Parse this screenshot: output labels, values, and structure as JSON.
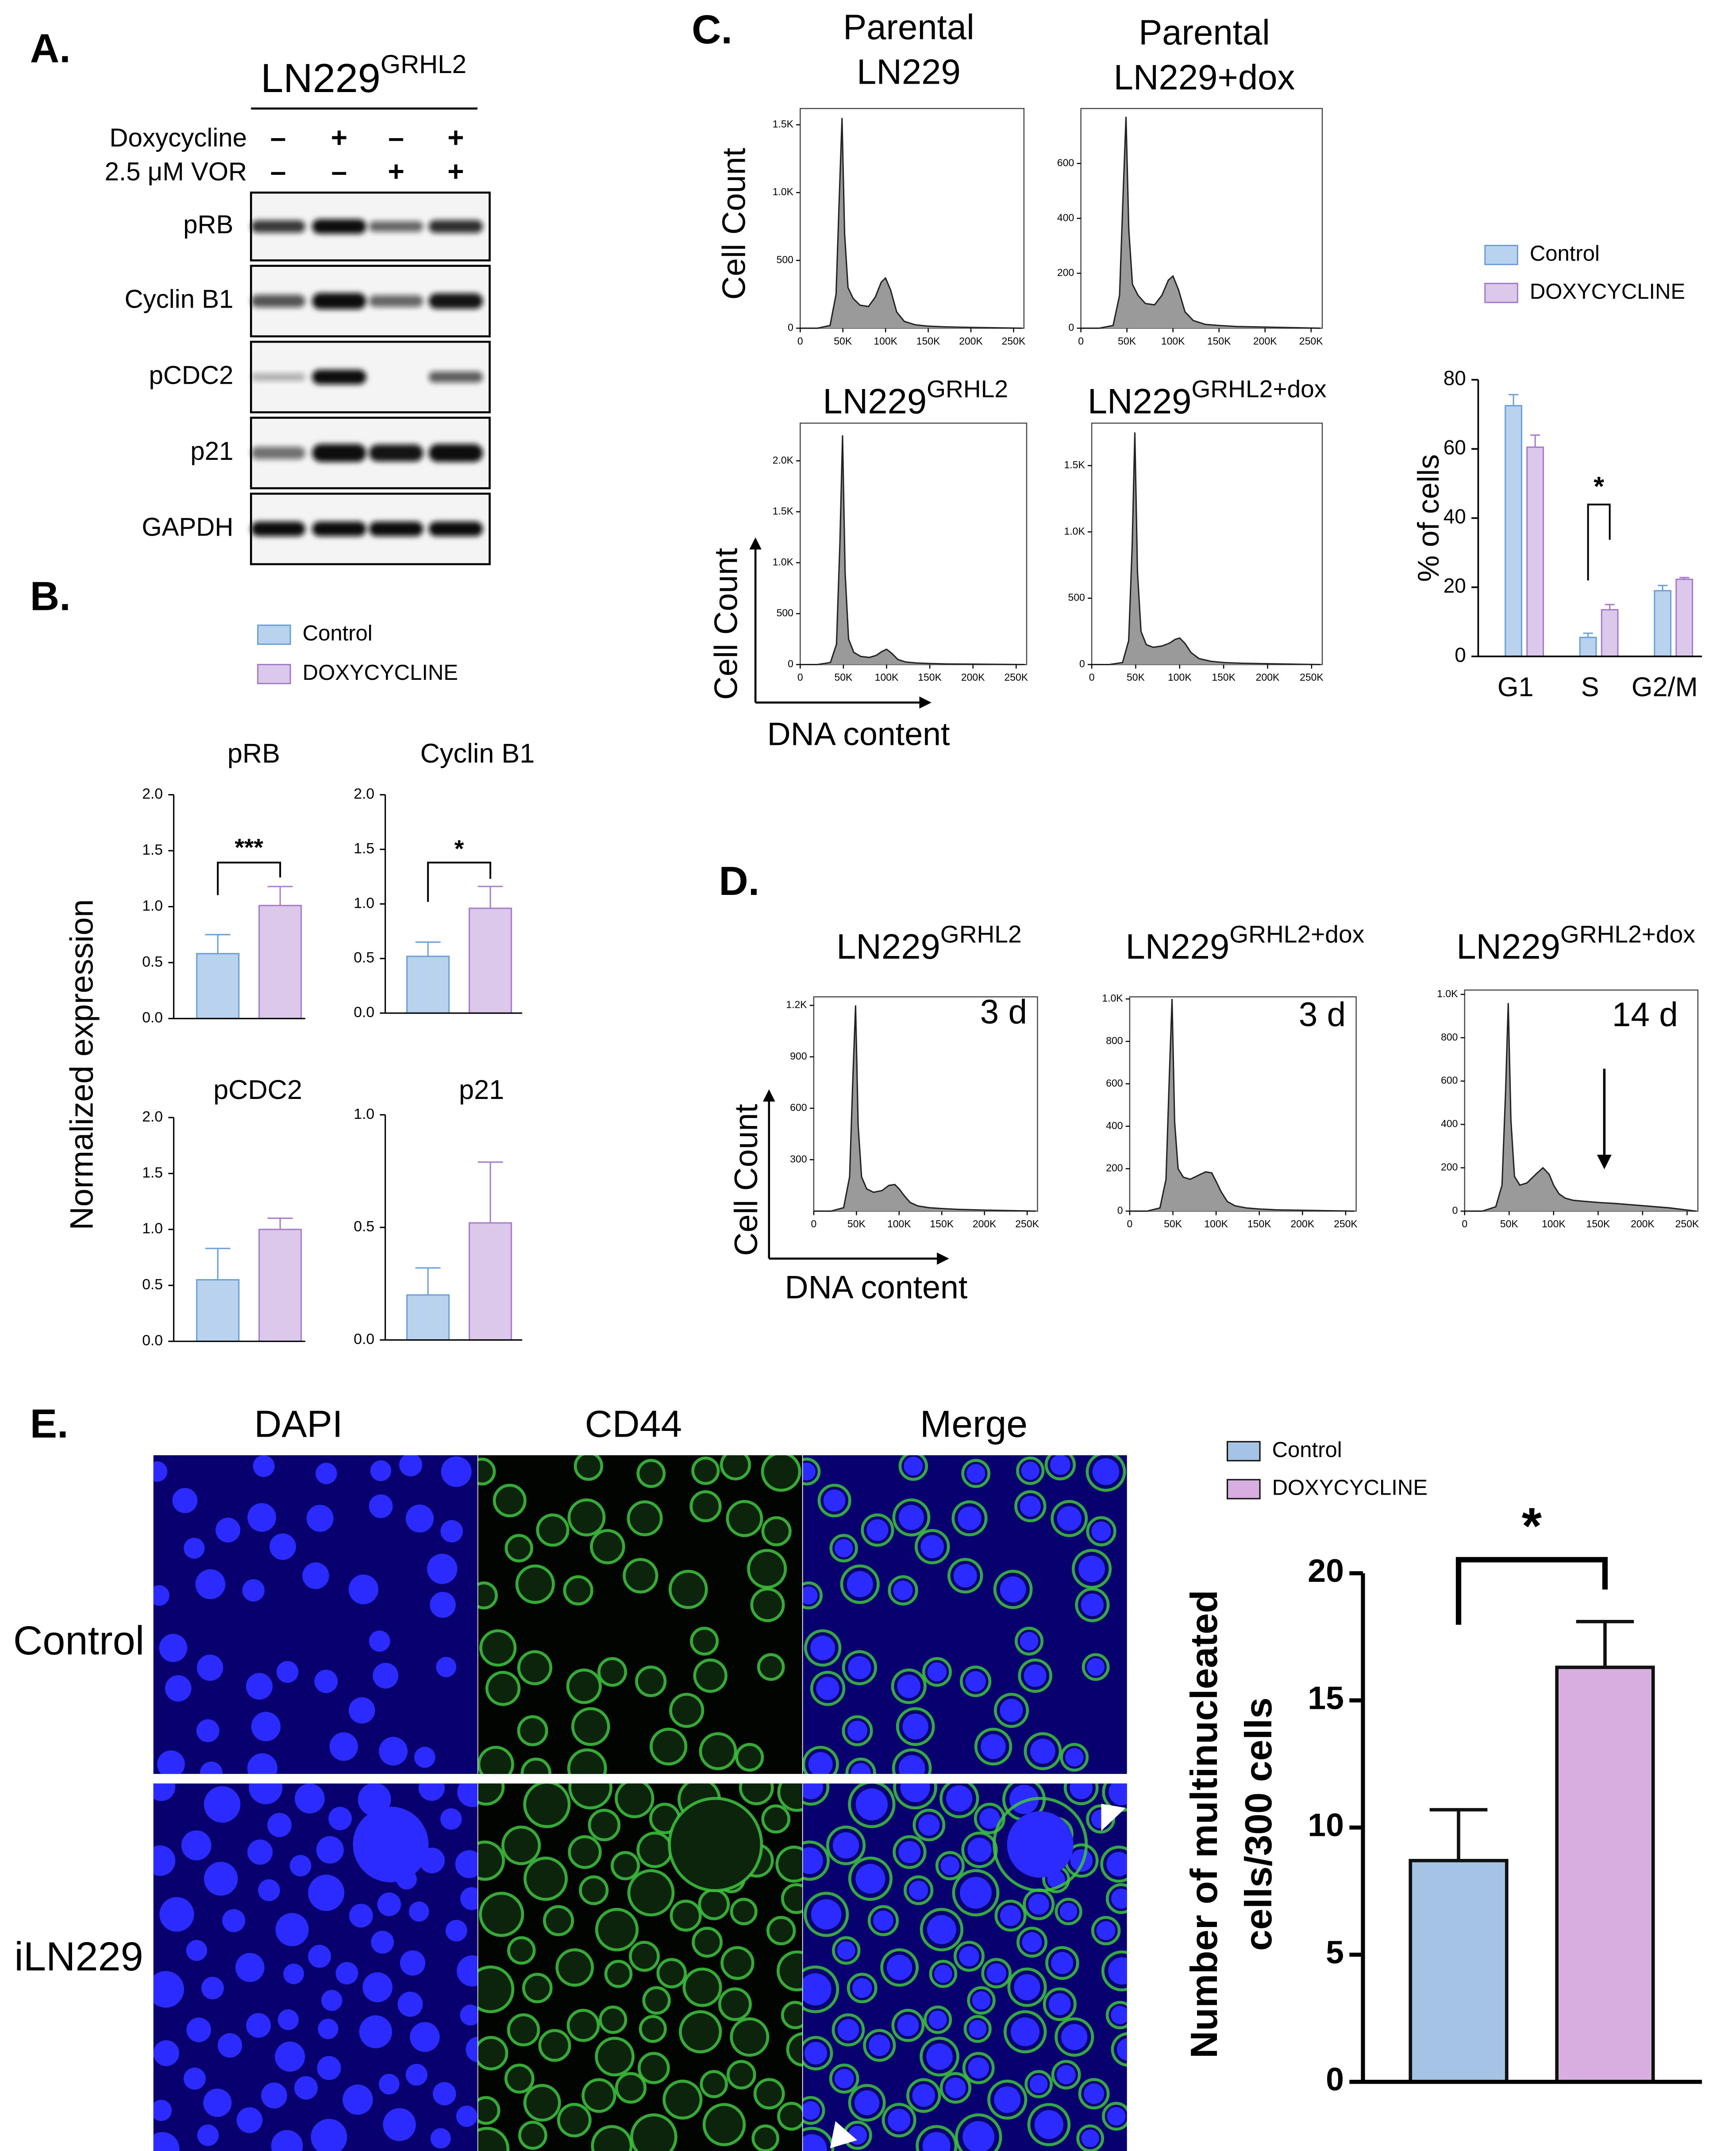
{
  "panel_labels": [
    "A.",
    "B.",
    "C.",
    "D.",
    "E."
  ],
  "blot": {
    "title": "LN229",
    "title_sup": "GRHL2",
    "treatments": [
      {
        "label": "Doxycycline",
        "signs": [
          "–",
          "+",
          "–",
          "+"
        ]
      },
      {
        "label": "2.5 μM VOR",
        "signs": [
          "–",
          "–",
          "+",
          "+"
        ]
      }
    ],
    "proteins": [
      "pRB",
      "Cyclin B1",
      "pCDC2",
      "p21",
      "GAPDH"
    ]
  },
  "microscopy": {
    "columns": [
      "DAPI",
      "CD44",
      "Merge"
    ],
    "rows": [
      "Control",
      "iLN229"
    ]
  },
  "chart_data": [
    {
      "type": "bar",
      "title": "pRB",
      "ylabel": "Normalized expression",
      "categories": [
        null
      ],
      "series": [
        {
          "name": "Control",
          "color": "#b9d2ee",
          "edgecolor": "#6d9fd6",
          "values": [
            0.58
          ],
          "errors": [
            0.17
          ]
        },
        {
          "name": "DOXYCYCLINE",
          "color": "#dcc8ea",
          "edgecolor": "#a47cc8",
          "values": [
            1.01
          ],
          "errors": [
            0.17
          ]
        }
      ],
      "ylim": [
        0,
        2
      ],
      "yticks": [
        {
          "value": 0,
          "label": "0.0"
        },
        0.5,
        {
          "value": 1,
          "label": "1.0"
        },
        1.5,
        {
          "value": 2,
          "label": "2.0"
        }
      ],
      "annotation": "***"
    },
    {
      "type": "bar",
      "title": "Cyclin B1",
      "categories": [
        null
      ],
      "series": [
        {
          "color": "#b9d2ee",
          "edgecolor": "#6d9fd6",
          "values": [
            0.52
          ],
          "errors": [
            0.13
          ]
        },
        {
          "color": "#dcc8ea",
          "edgecolor": "#a47cc8",
          "values": [
            0.96
          ],
          "errors": [
            0.2
          ]
        }
      ],
      "ylim": [
        0,
        2
      ],
      "yticks": [
        {
          "value": 0,
          "label": "0.0"
        },
        0.5,
        {
          "value": 1,
          "label": "1.0"
        },
        1.5,
        {
          "value": 2,
          "label": "2.0"
        }
      ],
      "annotation": "*"
    },
    {
      "type": "bar",
      "title": "pCDC2",
      "categories": [
        null
      ],
      "series": [
        {
          "color": "#b9d2ee",
          "edgecolor": "#6d9fd6",
          "values": [
            0.55
          ],
          "errors": [
            0.28
          ]
        },
        {
          "color": "#dcc8ea",
          "edgecolor": "#a47cc8",
          "values": [
            1.0
          ],
          "errors": [
            0.1
          ]
        }
      ],
      "ylim": [
        0,
        2
      ],
      "yticks": [
        {
          "value": 0,
          "label": "0.0"
        },
        0.5,
        {
          "value": 1,
          "label": "1.0"
        },
        1.5,
        {
          "value": 2,
          "label": "2.0"
        }
      ]
    },
    {
      "type": "bar",
      "title": "p21",
      "categories": [
        null
      ],
      "series": [
        {
          "color": "#b9d2ee",
          "edgecolor": "#6d9fd6",
          "values": [
            0.2
          ],
          "errors": [
            0.12
          ]
        },
        {
          "color": "#dcc8ea",
          "edgecolor": "#a47cc8",
          "values": [
            0.52
          ],
          "errors": [
            0.27
          ]
        }
      ],
      "ylim": [
        0,
        1
      ],
      "yticks": [
        {
          "value": 0,
          "label": "0.0"
        },
        0.5,
        {
          "value": 1,
          "label": "1.0"
        }
      ]
    },
    {
      "type": "area",
      "title": [
        "Parental",
        "LN229"
      ],
      "ylabel": "Cell Count",
      "color": "#9a9a9a",
      "x": [
        0,
        20000,
        35000,
        42000,
        46000,
        49000,
        52000,
        56000,
        62000,
        70000,
        80000,
        88000,
        95000,
        100000,
        106000,
        113000,
        122000,
        135000,
        150000,
        170000,
        200000,
        230000,
        260000
      ],
      "values": [
        0,
        0,
        20,
        250,
        1000,
        1550,
        700,
        300,
        220,
        170,
        160,
        230,
        340,
        370,
        280,
        120,
        50,
        25,
        15,
        10,
        6,
        3,
        0
      ],
      "xlim": [
        0,
        262144
      ],
      "xticks": [
        0,
        {
          "value": 50000,
          "label": "50K"
        },
        {
          "value": 100000,
          "label": "100K"
        },
        {
          "value": 150000,
          "label": "150K"
        },
        {
          "value": 200000,
          "label": "200K"
        },
        {
          "value": 250000,
          "label": "250K"
        }
      ],
      "ylim": [
        0,
        1620
      ],
      "yticks": [
        0,
        500,
        {
          "value": 1000,
          "label": "1.0K"
        },
        {
          "value": 1500,
          "label": "1.5K"
        }
      ]
    },
    {
      "type": "area",
      "title": [
        "Parental",
        "LN229+dox"
      ],
      "color": "#9a9a9a",
      "x": [
        0,
        20000,
        35000,
        42000,
        46000,
        49000,
        52000,
        56000,
        62000,
        70000,
        80000,
        88000,
        95000,
        100000,
        106000,
        113000,
        122000,
        135000,
        150000,
        170000,
        200000,
        230000,
        260000
      ],
      "values": [
        0,
        0,
        10,
        120,
        500,
        770,
        360,
        160,
        120,
        90,
        85,
        120,
        175,
        190,
        140,
        60,
        28,
        14,
        10,
        6,
        4,
        2,
        0
      ],
      "xlim": [
        0,
        262144
      ],
      "xticks": [
        0,
        {
          "value": 50000,
          "label": "50K"
        },
        {
          "value": 100000,
          "label": "100K"
        },
        {
          "value": 150000,
          "label": "150K"
        },
        {
          "value": 200000,
          "label": "200K"
        },
        {
          "value": 250000,
          "label": "250K"
        }
      ],
      "ylim": [
        0,
        800
      ],
      "yticks": [
        0,
        200,
        400,
        600
      ]
    },
    {
      "type": "area",
      "title": "LN229",
      "title_sup": "GRHL2",
      "ylabel": "Cell Count",
      "xlabel": "DNA content",
      "color": "#9a9a9a",
      "x": [
        0,
        20000,
        35000,
        42000,
        46000,
        49000,
        52000,
        56000,
        62000,
        70000,
        80000,
        88000,
        95000,
        100000,
        106000,
        113000,
        122000,
        135000,
        150000,
        170000,
        200000,
        230000,
        260000
      ],
      "values": [
        0,
        0,
        20,
        200,
        1200,
        2250,
        900,
        250,
        120,
        80,
        70,
        90,
        130,
        150,
        110,
        50,
        25,
        15,
        10,
        6,
        4,
        2,
        0
      ],
      "xlim": [
        0,
        262144
      ],
      "xticks": [
        0,
        {
          "value": 50000,
          "label": "50K"
        },
        {
          "value": 100000,
          "label": "100K"
        },
        {
          "value": 150000,
          "label": "150K"
        },
        {
          "value": 200000,
          "label": "200K"
        },
        {
          "value": 250000,
          "label": "250K"
        }
      ],
      "ylim": [
        0,
        2370
      ],
      "yticks": [
        0,
        500,
        {
          "value": 1000,
          "label": "1.0K"
        },
        {
          "value": 1500,
          "label": "1.5K"
        },
        {
          "value": 2000,
          "label": "2.0K"
        }
      ]
    },
    {
      "type": "area",
      "title": "LN229",
      "title_sup": "GRHL2+dox",
      "color": "#9a9a9a",
      "x": [
        0,
        20000,
        35000,
        42000,
        46000,
        49000,
        52000,
        56000,
        62000,
        70000,
        80000,
        88000,
        95000,
        100000,
        106000,
        113000,
        122000,
        135000,
        150000,
        170000,
        200000,
        230000,
        260000
      ],
      "values": [
        0,
        0,
        15,
        180,
        900,
        1750,
        700,
        250,
        150,
        130,
        140,
        160,
        190,
        200,
        160,
        90,
        45,
        25,
        15,
        10,
        6,
        3,
        0
      ],
      "xlim": [
        0,
        262144
      ],
      "xticks": [
        0,
        {
          "value": 50000,
          "label": "50K"
        },
        {
          "value": 100000,
          "label": "100K"
        },
        {
          "value": 150000,
          "label": "150K"
        },
        {
          "value": 200000,
          "label": "200K"
        },
        {
          "value": 250000,
          "label": "250K"
        }
      ],
      "ylim": [
        0,
        1820
      ],
      "yticks": [
        0,
        500,
        {
          "value": 1000,
          "label": "1.0K"
        },
        {
          "value": 1500,
          "label": "1.5K"
        }
      ]
    },
    {
      "type": "bar",
      "ylabel": "% of cells",
      "categories": [
        "G1",
        "S",
        "G2/M"
      ],
      "series": [
        {
          "name": "Control",
          "color": "#b9d2ee",
          "edgecolor": "#6d9fd6",
          "values": [
            72.5,
            5.5,
            19.0
          ],
          "errors": [
            3.2,
            1.2,
            1.5
          ]
        },
        {
          "name": "DOXYCYCLINE",
          "color": "#dcc8ea",
          "edgecolor": "#a47cc8",
          "values": [
            60.5,
            13.5,
            22.3
          ],
          "errors": [
            3.5,
            1.5,
            0.5
          ]
        }
      ],
      "ylim": [
        0,
        80
      ],
      "yticks": [
        0,
        20,
        40,
        60,
        80
      ],
      "annotation": "*"
    },
    {
      "type": "area",
      "title": "LN229",
      "title_sup": "GRHL2",
      "annotation": "3 d",
      "ylabel": "Cell Count",
      "xlabel": "DNA content",
      "color": "#9a9a9a",
      "x": [
        0,
        20000,
        35000,
        42000,
        46000,
        49000,
        52000,
        56000,
        62000,
        70000,
        80000,
        88000,
        95000,
        100000,
        106000,
        113000,
        122000,
        135000,
        150000,
        170000,
        200000,
        230000,
        260000
      ],
      "values": [
        0,
        0,
        20,
        200,
        800,
        1200,
        500,
        200,
        130,
        110,
        120,
        150,
        155,
        130,
        90,
        50,
        30,
        20,
        15,
        10,
        6,
        3,
        0
      ],
      "xlim": [
        0,
        262144
      ],
      "xticks": [
        0,
        {
          "value": 50000,
          "label": "50K"
        },
        {
          "value": 100000,
          "label": "100K"
        },
        {
          "value": 150000,
          "label": "150K"
        },
        {
          "value": 200000,
          "label": "200K"
        },
        {
          "value": 250000,
          "label": "250K"
        }
      ],
      "ylim": [
        0,
        1250
      ],
      "yticks": [
        300,
        600,
        900,
        {
          "value": 1200,
          "label": "1.2K"
        }
      ]
    },
    {
      "type": "area",
      "title": "LN229",
      "title_sup": "GRHL2+dox",
      "annotation": "3 d",
      "color": "#9a9a9a",
      "x": [
        0,
        20000,
        35000,
        42000,
        46000,
        49000,
        52000,
        56000,
        62000,
        70000,
        80000,
        88000,
        95000,
        100000,
        106000,
        113000,
        122000,
        135000,
        150000,
        170000,
        200000,
        230000,
        260000
      ],
      "values": [
        0,
        0,
        15,
        150,
        650,
        1000,
        420,
        200,
        160,
        150,
        170,
        185,
        180,
        140,
        90,
        45,
        25,
        15,
        10,
        6,
        4,
        2,
        0
      ],
      "xlim": [
        0,
        262144
      ],
      "xticks": [
        0,
        {
          "value": 50000,
          "label": "50K"
        },
        {
          "value": 100000,
          "label": "100K"
        },
        {
          "value": 150000,
          "label": "150K"
        },
        {
          "value": 200000,
          "label": "200K"
        },
        {
          "value": 250000,
          "label": "250K"
        }
      ],
      "ylim": [
        0,
        1010
      ],
      "yticks": [
        0,
        200,
        400,
        600,
        800,
        {
          "value": 1000,
          "label": "1.0K"
        }
      ]
    },
    {
      "type": "area",
      "title": "LN229",
      "title_sup": "GRHL2+dox",
      "annotation": "14 d",
      "color": "#9a9a9a",
      "x": [
        0,
        20000,
        35000,
        42000,
        46000,
        49000,
        52000,
        56000,
        62000,
        70000,
        80000,
        88000,
        95000,
        100000,
        106000,
        113000,
        122000,
        135000,
        150000,
        170000,
        200000,
        230000,
        260000
      ],
      "values": [
        0,
        0,
        20,
        120,
        550,
        960,
        420,
        160,
        120,
        130,
        170,
        200,
        170,
        120,
        80,
        60,
        50,
        45,
        40,
        35,
        25,
        15,
        0
      ],
      "xlim": [
        0,
        262144
      ],
      "xticks": [
        0,
        {
          "value": 50000,
          "label": "50K"
        },
        {
          "value": 100000,
          "label": "100K"
        },
        {
          "value": 150000,
          "label": "150K"
        },
        {
          "value": 200000,
          "label": "200K"
        },
        {
          "value": 250000,
          "label": "250K"
        }
      ],
      "ylim": [
        0,
        1020
      ],
      "yticks": [
        0,
        200,
        400,
        600,
        800,
        {
          "value": 1000,
          "label": "1.0K"
        }
      ]
    },
    {
      "type": "bar",
      "ylabel": [
        "Number of multinucleated",
        "cells/300 cells"
      ],
      "categories": [
        null
      ],
      "series": [
        {
          "name": "Control",
          "color": "#a4c3e5",
          "edgecolor": "#111111",
          "values": [
            8.7
          ],
          "errors": [
            2.0
          ]
        },
        {
          "name": "DOXYCYCLINE",
          "color": "#d8aee0",
          "edgecolor": "#111111",
          "values": [
            16.3
          ],
          "errors": [
            1.8
          ]
        }
      ],
      "ylim": [
        0,
        20
      ],
      "yticks": [
        0,
        5,
        10,
        15,
        20
      ],
      "annotation": "*"
    }
  ]
}
